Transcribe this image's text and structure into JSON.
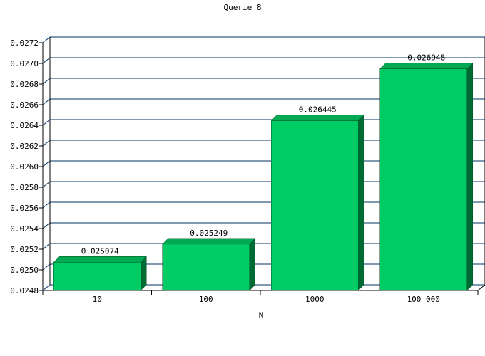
{
  "chart_data": {
    "type": "bar",
    "title": "Querie 8",
    "xlabel": "N",
    "ylabel": "",
    "categories": [
      "10",
      "100",
      "1000",
      "100 000"
    ],
    "values": [
      0.025074,
      0.025249,
      0.026445,
      0.026948
    ],
    "value_labels": [
      "0.025074",
      "0.025249",
      "0.026445",
      "0.026948"
    ],
    "ylim": [
      0.0248,
      0.0272
    ],
    "yticks": [
      "0.0248",
      "0.0250",
      "0.0252",
      "0.0254",
      "0.0256",
      "0.0258",
      "0.0260",
      "0.0262",
      "0.0264",
      "0.0266",
      "0.0268",
      "0.0270",
      "0.0272"
    ],
    "grid": true,
    "style": "3d",
    "colors": {
      "bar_front": "#00cc66",
      "bar_top": "#00a952",
      "bar_side": "#006a33",
      "grid": "#003366",
      "axis": "#000000"
    }
  }
}
